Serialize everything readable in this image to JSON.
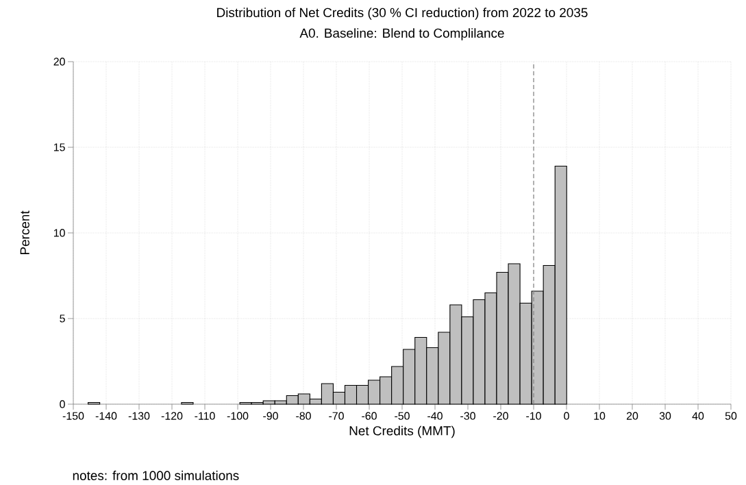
{
  "chart_data": {
    "type": "histogram",
    "title": "Distribution of Net Credits (30 % CI reduction) from 2022 to 2035",
    "subtitle": "A0. Baseline: Blend to Complilance",
    "xlabel": "Net Credits (MMT)",
    "ylabel": "Percent",
    "annotations": [
      "notes: from 1000 simulations"
    ],
    "bins": [
      -145.5,
      -141.95,
      -138.4,
      -134.85,
      -131.3,
      -127.75,
      -124.2,
      -120.65,
      -117.1,
      -113.55,
      -110,
      -106.45,
      -102.9,
      -99.35,
      -95.8,
      -92.25,
      -88.7,
      -85.15,
      -81.6,
      -78.05,
      -74.5,
      -70.95,
      -67.4,
      -63.85,
      -60.3,
      -56.75,
      -53.2,
      -49.65,
      -46.1,
      -42.55,
      -39,
      -35.45,
      -31.9,
      -28.35,
      -24.8,
      -21.25,
      -17.7,
      -14.15,
      -10.6,
      -7.05,
      -3.5,
      0.05
    ],
    "values": [
      0.1,
      0,
      0,
      0,
      0,
      0,
      0,
      0,
      0.1,
      0,
      0,
      0,
      0,
      0.1,
      0.1,
      0.2,
      0.2,
      0.5,
      0.6,
      0.3,
      1.2,
      0.7,
      1.1,
      1.1,
      1.4,
      1.6,
      2.2,
      3.2,
      3.9,
      3.3,
      4.2,
      5.8,
      5.1,
      6.1,
      6.5,
      7.7,
      8.2,
      5.9,
      6.6,
      8.1,
      13.9
    ],
    "color": "#bfbfbf",
    "xlim": [
      -150,
      50
    ],
    "xticks": [
      -150,
      -140,
      -130,
      -120,
      -110,
      -100,
      -90,
      -80,
      -70,
      -60,
      -50,
      -40,
      -30,
      -20,
      -10,
      0,
      10,
      20,
      30,
      40,
      50
    ],
    "ylim": [
      0,
      20
    ],
    "yticks": [
      0,
      5,
      10,
      15,
      20
    ],
    "grid": true,
    "ref_lines": [
      {
        "axis": "x",
        "value": -10,
        "color": "#808080",
        "line_style": "dashed"
      }
    ]
  }
}
